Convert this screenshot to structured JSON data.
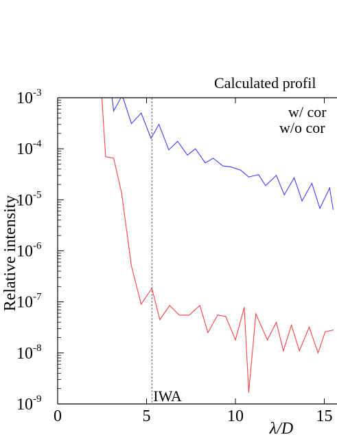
{
  "chart_data": {
    "type": "line",
    "title": "Calculated profil",
    "xlabel": "λ/D",
    "ylabel": "Relative intensity",
    "xlim": [
      0,
      15.5
    ],
    "ylim": [
      1e-09,
      0.001
    ],
    "yscale": "log",
    "grid": false,
    "legend_position": "top-right",
    "x_ticks": [
      {
        "value": 0,
        "label": "0"
      },
      {
        "value": 5,
        "label": "5"
      },
      {
        "value": 10,
        "label": "10"
      },
      {
        "value": 15,
        "label": "15"
      }
    ],
    "y_ticks": [
      {
        "exp": -3,
        "label": "10-3"
      },
      {
        "exp": -4,
        "label": "10-4"
      },
      {
        "exp": -5,
        "label": "10-5"
      },
      {
        "exp": -6,
        "label": "10-6"
      },
      {
        "exp": -7,
        "label": "10-7"
      },
      {
        "exp": -8,
        "label": "10-8"
      },
      {
        "exp": -9,
        "label": "10-9"
      }
    ],
    "annotation": {
      "label": "IWA",
      "x": 5.3
    },
    "series": [
      {
        "name": "w/ cor",
        "color": "#ff4040",
        "x": [
          2.4,
          2.7,
          3.15,
          3.6,
          4.15,
          4.7,
          5.3,
          5.75,
          6.3,
          6.85,
          7.4,
          8.0,
          8.45,
          9.0,
          9.45,
          10.0,
          10.5,
          10.75,
          11.15,
          11.8,
          12.3,
          12.7,
          13.15,
          13.6,
          14.15,
          14.65,
          15.05,
          15.5
        ],
        "y": [
          0.003,
          7e-05,
          6.5e-05,
          1.35e-05,
          5e-07,
          9e-08,
          1.85e-07,
          4.5e-08,
          8.5e-08,
          5.5e-08,
          5.5e-08,
          8.5e-08,
          2.5e-08,
          5.5e-08,
          5.2e-08,
          1.8e-08,
          7.8e-08,
          1.7e-09,
          5.8e-08,
          1.8e-08,
          4e-08,
          1.1e-08,
          3.5e-08,
          1.1e-08,
          3.2e-08,
          1e-08,
          2.6e-08,
          2.8e-08
        ]
      },
      {
        "name": "w/o cor",
        "color": "#3d3dff",
        "x": [
          3.0,
          3.15,
          3.6,
          3.7,
          4.15,
          4.7,
          5.25,
          5.7,
          6.25,
          6.75,
          7.3,
          7.75,
          8.3,
          8.75,
          9.3,
          9.75,
          10.3,
          10.75,
          11.3,
          11.7,
          12.3,
          12.75,
          13.3,
          13.75,
          14.3,
          14.75,
          15.3,
          15.5
        ],
        "y": [
          0.0015,
          0.00055,
          0.00105,
          0.00095,
          0.00031,
          0.0005,
          0.00016,
          0.0003,
          9.5e-05,
          0.00014,
          7.5e-05,
          0.0001,
          5.3e-05,
          6.5e-05,
          4.6e-05,
          4.4e-05,
          3.8e-05,
          2.8e-05,
          3.1e-05,
          1.9e-05,
          3e-05,
          1.25e-05,
          2.7e-05,
          9.5e-06,
          2.1e-05,
          6.8e-06,
          1.7e-05,
          6.5e-06
        ]
      }
    ]
  }
}
